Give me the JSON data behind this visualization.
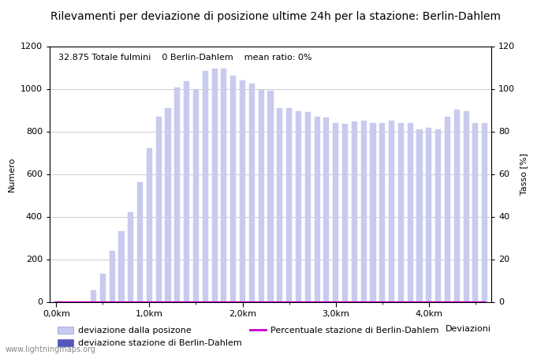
{
  "title": "Rilevamenti per deviazione di posizione ultime 24h per la stazione: Berlin-Dahlem",
  "subtitle": "32.875 Totale fulmini    0 Berlin-Dahlem    mean ratio: 0%",
  "xlabel": "Deviazioni",
  "ylabel_left": "Numero",
  "ylabel_right": "Tasso [%]",
  "watermark": "www.lightningmaps.org",
  "ylim_left": [
    0,
    1200
  ],
  "ylim_right": [
    0,
    120
  ],
  "yticks_left": [
    0,
    200,
    400,
    600,
    800,
    1000,
    1200
  ],
  "yticks_right": [
    0,
    20,
    40,
    60,
    80,
    100,
    120
  ],
  "xtick_labels": [
    "0,0km",
    "1,0km",
    "2,0km",
    "3,0km",
    "4,0km"
  ],
  "xtick_positions": [
    0,
    10,
    20,
    30,
    40
  ],
  "minor_xtick_positions": [
    5,
    15,
    25,
    35,
    45
  ],
  "bar_positions": [
    0,
    1,
    2,
    3,
    4,
    5,
    6,
    7,
    8,
    9,
    10,
    11,
    12,
    13,
    14,
    15,
    16,
    17,
    18,
    19,
    20,
    21,
    22,
    23,
    24,
    25,
    26,
    27,
    28,
    29,
    30,
    31,
    32,
    33,
    34,
    35,
    36,
    37,
    38,
    39,
    40,
    41,
    42,
    43,
    44,
    45,
    46
  ],
  "bar_values": [
    2,
    2,
    2,
    2,
    55,
    130,
    240,
    330,
    420,
    560,
    720,
    870,
    910,
    1005,
    1035,
    1000,
    1085,
    1095,
    1095,
    1060,
    1040,
    1025,
    995,
    990,
    910,
    910,
    895,
    890,
    870,
    865,
    840,
    835,
    845,
    850,
    840,
    840,
    850,
    840,
    840,
    810,
    815,
    810,
    870,
    900,
    895,
    840,
    840
  ],
  "station_values": [
    0,
    0,
    0,
    0,
    0,
    0,
    0,
    0,
    0,
    0,
    0,
    0,
    0,
    0,
    0,
    0,
    0,
    0,
    0,
    0,
    0,
    0,
    0,
    0,
    0,
    0,
    0,
    0,
    0,
    0,
    0,
    0,
    0,
    0,
    0,
    0,
    0,
    0,
    0,
    0,
    0,
    0,
    0,
    0,
    0,
    0,
    0
  ],
  "ratio_values": [
    0,
    0,
    0,
    0,
    0,
    0,
    0,
    0,
    0,
    0,
    0,
    0,
    0,
    0,
    0,
    0,
    0,
    0,
    0,
    0,
    0,
    0,
    0,
    0,
    0,
    0,
    0,
    0,
    0,
    0,
    0,
    0,
    0,
    0,
    0,
    0,
    0,
    0,
    0,
    0,
    0,
    0,
    0,
    0,
    0,
    0,
    0
  ],
  "bar_color_light": "#c8caee",
  "bar_color_dark": "#5555bb",
  "line_color": "#cc00cc",
  "bg_color": "#ffffff",
  "grid_color": "#bbbbbb",
  "title_fontsize": 10,
  "axis_fontsize": 8,
  "tick_fontsize": 8,
  "legend_fontsize": 8,
  "bar_width": 0.6,
  "xlim": [
    -0.7,
    46.7
  ]
}
